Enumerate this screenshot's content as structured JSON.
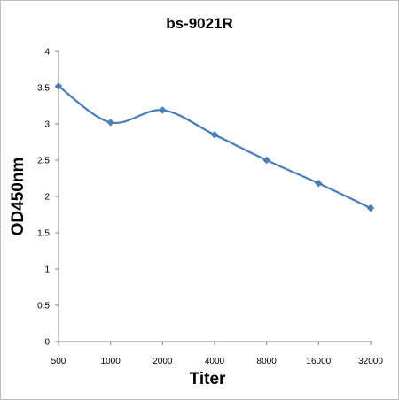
{
  "chart_data": {
    "type": "line",
    "title": "bs-9021R",
    "xlabel": "Titer",
    "ylabel": "OD450nm",
    "categories": [
      "500",
      "1000",
      "2000",
      "4000",
      "8000",
      "16000",
      "32000"
    ],
    "series": [
      {
        "values": [
          3.52,
          3.02,
          3.19,
          2.85,
          2.5,
          2.18,
          1.84
        ],
        "color": "#4a7ebb",
        "marker": "diamond"
      }
    ],
    "ylim": [
      0,
      4
    ],
    "yticks": [
      "0",
      "0.5",
      "1",
      "1.5",
      "2",
      "2.5",
      "3",
      "3.5",
      "4"
    ],
    "grid": false,
    "legend": "none",
    "smooth": true
  }
}
